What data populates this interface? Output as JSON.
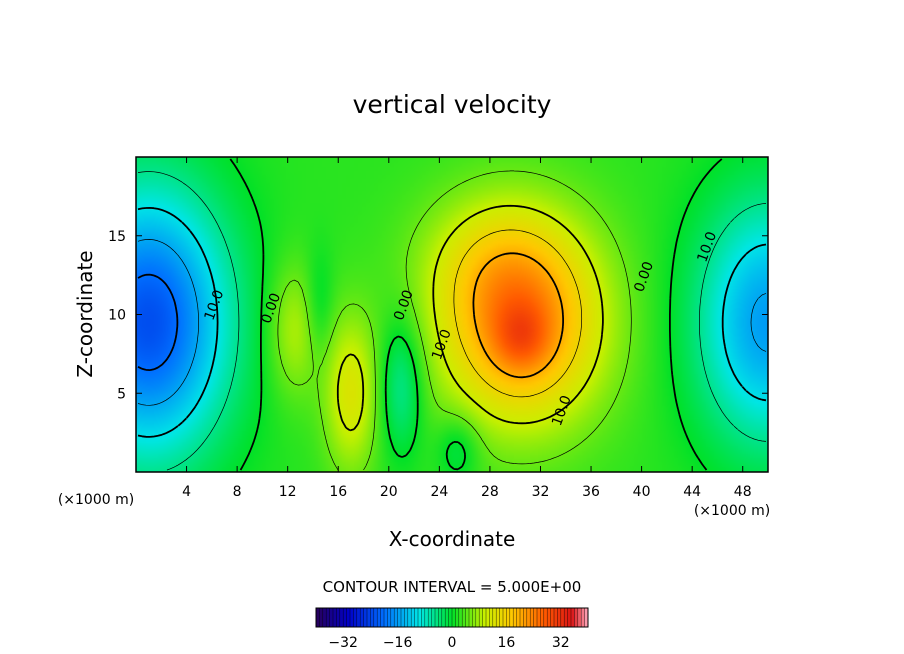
{
  "chart_data": {
    "type": "heatmap",
    "title": "vertical velocity",
    "xlabel": "X-coordinate",
    "ylabel": "Z-coordinate",
    "x_unit": "(×1000 m)",
    "z_unit": "(×1000 m)",
    "xlim": [
      0,
      50
    ],
    "ylim": [
      0,
      20
    ],
    "x_ticks": [
      "4",
      "8",
      "12",
      "16",
      "20",
      "24",
      "28",
      "32",
      "36",
      "40",
      "44",
      "48"
    ],
    "y_ticks": [
      "5",
      "10",
      "15"
    ],
    "contour_interval_text": "CONTOUR INTERVAL = 5.000E+00",
    "contour_labels": [
      {
        "text": "10.0",
        "x": 6.5,
        "z": 10.5
      },
      {
        "text": "0.00",
        "x": 11.0,
        "z": 10.3
      },
      {
        "text": "0.00",
        "x": 21.5,
        "z": 10.5
      },
      {
        "text": "10.0",
        "x": 24.5,
        "z": 8.0
      },
      {
        "text": "10.0",
        "x": 34.0,
        "z": 3.8
      },
      {
        "text": "0.00",
        "x": 40.5,
        "z": 12.3
      },
      {
        "text": "10.0",
        "x": 45.5,
        "z": 14.2
      }
    ],
    "colorbar": {
      "vmin": -40,
      "vmax": 40,
      "tick_values": [
        -32,
        -16,
        0,
        16,
        32
      ],
      "tick_labels": [
        "−32",
        "−16",
        "0",
        "16",
        "32"
      ]
    },
    "features": [
      {
        "name": "downdraft-left",
        "x": 1.0,
        "z": 9.5,
        "sx": 4.5,
        "sz": 6.0,
        "value": -25
      },
      {
        "name": "downdraft-right",
        "x": 50.0,
        "z": 9.5,
        "sx": 4.0,
        "sz": 5.5,
        "value": -18
      },
      {
        "name": "updraft-main",
        "x": 30.5,
        "z": 9.5,
        "sx": 4.5,
        "sz": 4.5,
        "value": 22
      },
      {
        "name": "updraft-core",
        "x": 30.5,
        "z": 8.5,
        "sx": 1.5,
        "sz": 1.5,
        "value": 6
      },
      {
        "name": "updraft-lobe",
        "x": 28.0,
        "z": 13.5,
        "sx": 4.0,
        "sz": 3.0,
        "value": 5
      },
      {
        "name": "updraft-mid",
        "x": 17.0,
        "z": 5.0,
        "sx": 1.5,
        "sz": 3.5,
        "value": 10
      },
      {
        "name": "downdraft-mid",
        "x": 21.0,
        "z": 5.5,
        "sx": 1.2,
        "sz": 3.0,
        "value": -8
      },
      {
        "name": "updraft-small",
        "x": 12.5,
        "z": 9.0,
        "sx": 1.5,
        "sz": 3.0,
        "value": 7
      },
      {
        "name": "downdraft-small",
        "x": 14.5,
        "z": 10.5,
        "sx": 0.8,
        "sz": 2.5,
        "value": -4
      },
      {
        "name": "downdraft-low",
        "x": 25.5,
        "z": 1.5,
        "sx": 1.2,
        "sz": 1.5,
        "value": -5
      }
    ]
  }
}
